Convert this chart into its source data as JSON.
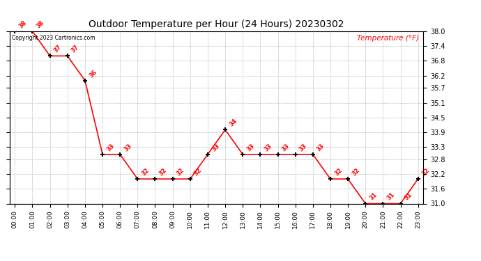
{
  "title": "Outdoor Temperature per Hour (24 Hours) 20230302",
  "copyright_text": "Copyright 2023 Cartronics.com",
  "legend_label": "Temperature (°F)",
  "hours": [
    "00:00",
    "01:00",
    "02:00",
    "03:00",
    "04:00",
    "05:00",
    "06:00",
    "07:00",
    "08:00",
    "09:00",
    "10:00",
    "11:00",
    "12:00",
    "13:00",
    "14:00",
    "15:00",
    "16:00",
    "17:00",
    "18:00",
    "19:00",
    "20:00",
    "21:00",
    "22:00",
    "23:00"
  ],
  "temps": [
    38,
    38,
    37,
    37,
    36,
    33,
    33,
    32,
    32,
    32,
    32,
    33,
    34,
    33,
    33,
    33,
    33,
    33,
    32,
    32,
    31,
    31,
    31,
    32
  ],
  "line_color": "red",
  "marker_color": "black",
  "label_color": "red",
  "title_color": "black",
  "copyright_color": "black",
  "legend_color": "red",
  "bg_color": "white",
  "grid_color": "#aaaaaa",
  "ylim_min": 31.0,
  "ylim_max": 38.0,
  "yticks": [
    31.0,
    31.6,
    32.2,
    32.8,
    33.3,
    33.9,
    34.5,
    35.1,
    35.7,
    36.2,
    36.8,
    37.4,
    38.0
  ]
}
